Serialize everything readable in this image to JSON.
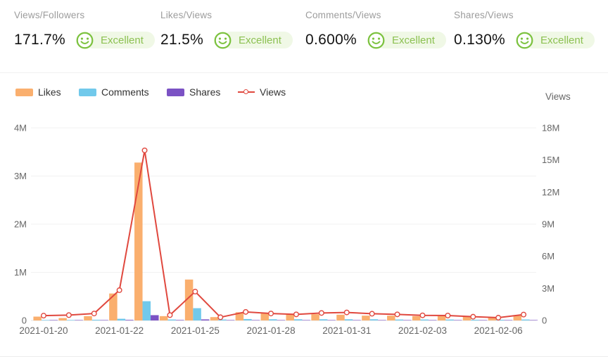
{
  "metrics": [
    {
      "label": "Views/Followers",
      "value": "171.7%",
      "rating": "Excellent"
    },
    {
      "label": "Likes/Views",
      "value": "21.5%",
      "rating": "Excellent"
    },
    {
      "label": "Comments/Views",
      "value": "0.600%",
      "rating": "Excellent"
    },
    {
      "label": "Shares/Views",
      "value": "0.130%",
      "rating": "Excellent"
    }
  ],
  "colors": {
    "likes": "#faaf6e",
    "comments": "#71c9eb",
    "shares": "#7b52c4",
    "views_line": "#e0483e",
    "rating_green": "#7cc23f",
    "rating_text": "#8cc152",
    "rating_bg": "#f0f8e6",
    "axis_text": "#666666",
    "grid": "#f1f1f1",
    "axis_line": "#e3e3e3"
  },
  "chart_data": {
    "type": "bar+line combo",
    "title": "",
    "legend": [
      "Likes",
      "Comments",
      "Shares",
      "Views"
    ],
    "legend_position": "top-left",
    "grid": "horizontal only",
    "categories": [
      "2021-01-20",
      "2021-01-21",
      "2021-01-21",
      "2021-01-22",
      "2021-01-23",
      "2021-01-24",
      "2021-01-25",
      "2021-01-26",
      "2021-01-27",
      "2021-01-28",
      "2021-01-29",
      "2021-01-30",
      "2021-01-31",
      "2021-02-01",
      "2021-02-02",
      "2021-02-03",
      "2021-02-04",
      "2021-02-05",
      "2021-02-06",
      "2021-02-07"
    ],
    "x_tick_label_indices": [
      0,
      3,
      6,
      9,
      12,
      15,
      18
    ],
    "x_tick_labels": [
      "2021-01-20",
      "2021-01-22",
      "2021-01-25",
      "2021-01-28",
      "2021-01-31",
      "2021-02-03",
      "2021-02-06"
    ],
    "left_axis": {
      "max": 4000000,
      "ticks": [
        "4M",
        "3M",
        "2M",
        "1M",
        "0"
      ]
    },
    "right_axis": {
      "title": "Views",
      "max": 18000000,
      "ticks": [
        "18M",
        "15M",
        "12M",
        "9M",
        "6M",
        "3M",
        "0"
      ]
    },
    "series": [
      {
        "name": "Likes",
        "type": "bar",
        "axis": "left",
        "color": "#faaf6e",
        "values": [
          80000,
          50000,
          90000,
          560000,
          3280000,
          90000,
          850000,
          70000,
          170000,
          150000,
          130000,
          130000,
          120000,
          100000,
          100000,
          90000,
          90000,
          80000,
          60000,
          100000
        ]
      },
      {
        "name": "Comments",
        "type": "bar",
        "axis": "left",
        "color": "#71c9eb",
        "values": [
          10000,
          10000,
          15000,
          35000,
          400000,
          20000,
          255000,
          20000,
          30000,
          25000,
          25000,
          25000,
          25000,
          25000,
          20000,
          20000,
          20000,
          15000,
          15000,
          20000
        ]
      },
      {
        "name": "Shares",
        "type": "bar",
        "axis": "left",
        "color": "#7b52c4",
        "values": [
          2000,
          2000,
          3000,
          12000,
          110000,
          10000,
          22000,
          6000,
          7000,
          6000,
          6000,
          6000,
          6000,
          5000,
          5000,
          5000,
          5000,
          4000,
          4000,
          5000
        ]
      },
      {
        "name": "Views",
        "type": "line",
        "axis": "right",
        "color": "#e0483e",
        "values": [
          450000,
          500000,
          650000,
          2830000,
          15900000,
          500000,
          2700000,
          300000,
          800000,
          650000,
          570000,
          700000,
          750000,
          630000,
          570000,
          480000,
          460000,
          350000,
          260000,
          550000
        ]
      }
    ]
  }
}
